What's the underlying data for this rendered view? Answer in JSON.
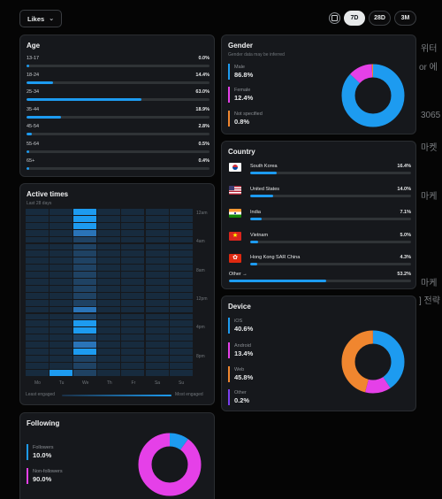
{
  "toolbar": {
    "dropdown_label": "Likes",
    "ranges": [
      {
        "label": "7D",
        "active": true
      },
      {
        "label": "28D",
        "active": false
      },
      {
        "label": "3M",
        "active": false
      }
    ]
  },
  "background_text": [
    "위터",
    "or 에",
    "3065",
    "마켓",
    "마케",
    "마케",
    "] 전략"
  ],
  "age": {
    "title": "Age",
    "rows": [
      {
        "label": "13-17",
        "value": "0.0%",
        "pct": 0.0
      },
      {
        "label": "18-24",
        "value": "14.4%",
        "pct": 14.4
      },
      {
        "label": "25-34",
        "value": "63.0%",
        "pct": 63.0
      },
      {
        "label": "35-44",
        "value": "18.9%",
        "pct": 18.9
      },
      {
        "label": "45-54",
        "value": "2.8%",
        "pct": 2.8
      },
      {
        "label": "55-64",
        "value": "0.5%",
        "pct": 0.5
      },
      {
        "label": "65+",
        "value": "0.4%",
        "pct": 0.4
      }
    ]
  },
  "gender": {
    "title": "Gender",
    "subtitle": "Gender data may be inferred",
    "items": [
      {
        "label": "Male",
        "value": "86.8%",
        "pct": 86.8,
        "color": "#1d9bf0"
      },
      {
        "label": "Female",
        "value": "12.4%",
        "pct": 12.4,
        "color": "#e540e8"
      },
      {
        "label": "Not specified",
        "value": "0.8%",
        "pct": 0.8,
        "color": "#f0862f"
      }
    ]
  },
  "country": {
    "title": "Country",
    "rows": [
      {
        "label": "South Korea",
        "value": "16.4%",
        "pct": 16.4,
        "flag": "kr"
      },
      {
        "label": "United States",
        "value": "14.0%",
        "pct": 14.0,
        "flag": "us"
      },
      {
        "label": "India",
        "value": "7.1%",
        "pct": 7.1,
        "flag": "in"
      },
      {
        "label": "Vietnam",
        "value": "5.0%",
        "pct": 5.0,
        "flag": "vn"
      },
      {
        "label": "Hong Kong SAR China",
        "value": "4.3%",
        "pct": 4.3,
        "flag": "hk"
      }
    ],
    "other": {
      "label": "Other",
      "value": "53.2%",
      "pct": 53.2
    }
  },
  "active_times": {
    "title": "Active times",
    "subtitle": "Last 28 days",
    "time_labels": [
      "12am",
      "4am",
      "8am",
      "12pm",
      "4pm",
      "8pm"
    ],
    "days": [
      "Mo",
      "Tu",
      "We",
      "Th",
      "Fr",
      "Sa",
      "Su"
    ],
    "legend_low": "Least engaged",
    "legend_high": "Most engaged",
    "grid": [
      [
        0,
        0,
        3,
        0,
        0,
        0,
        0
      ],
      [
        0,
        0,
        3,
        0,
        0,
        0,
        0
      ],
      [
        0,
        0,
        3,
        0,
        0,
        0,
        0
      ],
      [
        0,
        0,
        2,
        0,
        0,
        0,
        0
      ],
      [
        0,
        0,
        1,
        0,
        0,
        0,
        0
      ],
      [
        0,
        0,
        1,
        0,
        0,
        0,
        0
      ],
      [
        0,
        0,
        1,
        0,
        0,
        0,
        0
      ],
      [
        0,
        0,
        1,
        0,
        0,
        0,
        0
      ],
      [
        0,
        0,
        1,
        0,
        0,
        0,
        0
      ],
      [
        0,
        0,
        1,
        0,
        0,
        0,
        0
      ],
      [
        0,
        0,
        1,
        0,
        0,
        0,
        0
      ],
      [
        0,
        0,
        1,
        0,
        0,
        0,
        0
      ],
      [
        0,
        0,
        1,
        0,
        0,
        0,
        0
      ],
      [
        0,
        0,
        1,
        0,
        0,
        0,
        0
      ],
      [
        0,
        0,
        2,
        0,
        0,
        0,
        0
      ],
      [
        0,
        0,
        1,
        0,
        0,
        0,
        0
      ],
      [
        0,
        0,
        3,
        0,
        0,
        0,
        0
      ],
      [
        0,
        0,
        3,
        0,
        0,
        0,
        0
      ],
      [
        0,
        0,
        1,
        0,
        0,
        0,
        0
      ],
      [
        0,
        0,
        2,
        0,
        0,
        0,
        0
      ],
      [
        0,
        0,
        3,
        0,
        0,
        0,
        0
      ],
      [
        0,
        0,
        1,
        0,
        0,
        0,
        0
      ],
      [
        0,
        0,
        1,
        0,
        0,
        0,
        0
      ],
      [
        0,
        3,
        1,
        0,
        0,
        0,
        0
      ]
    ]
  },
  "device": {
    "title": "Device",
    "items": [
      {
        "label": "iOS",
        "value": "40.6%",
        "pct": 40.6,
        "color": "#1d9bf0"
      },
      {
        "label": "Android",
        "value": "13.4%",
        "pct": 13.4,
        "color": "#e540e8"
      },
      {
        "label": "Web",
        "value": "45.8%",
        "pct": 45.8,
        "color": "#f0862f"
      },
      {
        "label": "Other",
        "value": "0.2%",
        "pct": 0.2,
        "color": "#7a3ff0"
      }
    ]
  },
  "following": {
    "title": "Following",
    "items": [
      {
        "label": "Followers",
        "value": "10.0%",
        "pct": 10.0,
        "color": "#1d9bf0"
      },
      {
        "label": "Non-followers",
        "value": "90.0%",
        "pct": 90.0,
        "color": "#e540e8"
      }
    ]
  },
  "colors": {
    "blue": "#1d9bf0",
    "pink": "#e540e8",
    "orange": "#f0862f",
    "purple": "#7a3ff0"
  }
}
